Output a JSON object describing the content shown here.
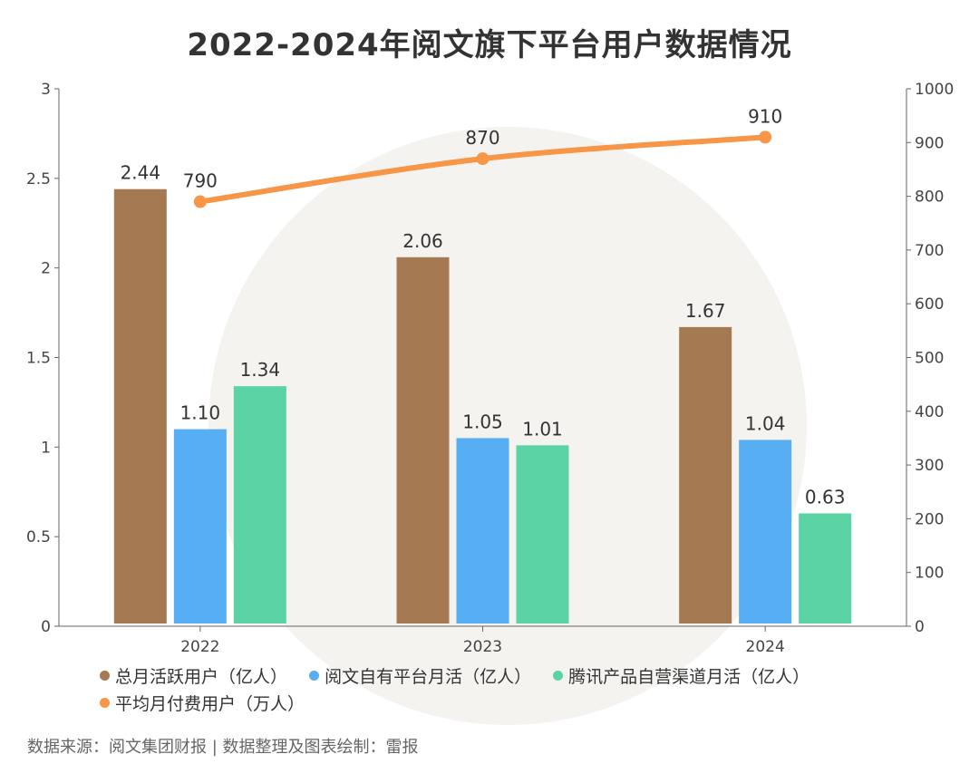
{
  "title": "2022-2024年阅文旗下平台用户数据情况",
  "source": "数据来源：阅文集团财报 | 数据整理及图表绘制：雷报",
  "colors": {
    "total_mau": "#A57A53",
    "own_platform": "#57AEF3",
    "tencent": "#5CD3A4",
    "paying": "#F79646",
    "axis": "#666666"
  },
  "chart_data": {
    "type": "bar",
    "categories": [
      "2022",
      "2023",
      "2024"
    ],
    "ylim": [
      0,
      3
    ],
    "y2lim": [
      0,
      1000
    ],
    "yticks": [
      "0",
      "0.5",
      "1",
      "1.5",
      "2",
      "2.5",
      "3"
    ],
    "y2ticks": [
      "0",
      "100",
      "200",
      "300",
      "400",
      "500",
      "600",
      "700",
      "800",
      "900",
      "1000"
    ],
    "series": [
      {
        "name": "总月活跃用户（亿人）",
        "type": "bar",
        "axis": "left",
        "color": "#A57A53",
        "values": [
          2.44,
          2.06,
          1.67
        ],
        "labels": [
          "2.44",
          "2.06",
          "1.67"
        ]
      },
      {
        "name": "阅文自有平台月活（亿人）",
        "type": "bar",
        "axis": "left",
        "color": "#57AEF3",
        "values": [
          1.1,
          1.05,
          1.04
        ],
        "labels": [
          "1.10",
          "1.05",
          "1.04"
        ]
      },
      {
        "name": "腾讯产品自营渠道月活（亿人）",
        "type": "bar",
        "axis": "left",
        "color": "#5CD3A4",
        "values": [
          1.34,
          1.01,
          0.63
        ],
        "labels": [
          "1.34",
          "1.01",
          "0.63"
        ]
      },
      {
        "name": "平均月付费用户（万人）",
        "type": "line",
        "axis": "right",
        "color": "#F79646",
        "values": [
          790,
          870,
          910
        ],
        "labels": [
          "790",
          "870",
          "910"
        ]
      }
    ],
    "legend_position": "bottom",
    "grid": false
  }
}
